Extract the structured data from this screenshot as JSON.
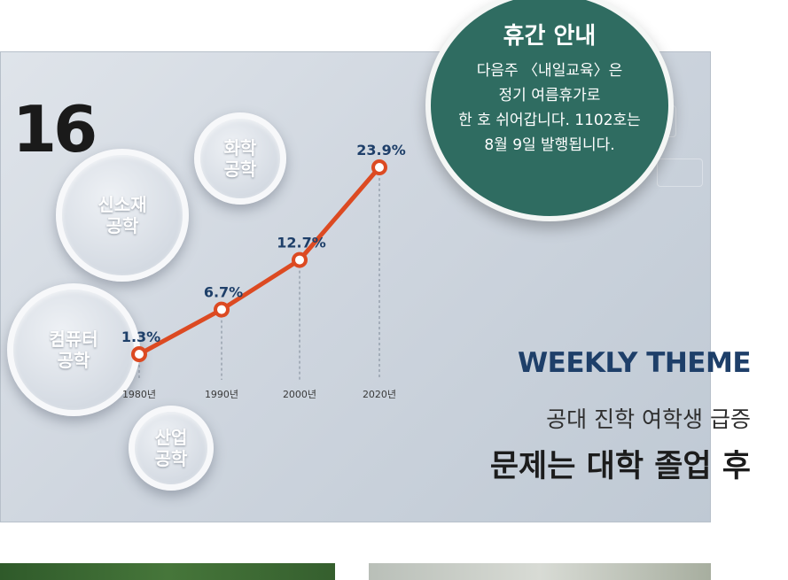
{
  "page_number": "16",
  "notice": {
    "title": "휴간 안내",
    "body": "다음주 〈내일교육〉은\n정기 여름휴가로\n한 호 쉬어갑니다. 1102호는\n8월 9일 발행됩니다."
  },
  "bubbles": [
    {
      "label": "화학\n공학"
    },
    {
      "label": "신소재\n공학"
    },
    {
      "label": "컴퓨터\n공학"
    },
    {
      "label": "산업\n공학"
    }
  ],
  "theme_label": "WEEKLY THEME",
  "subtitle": "공대 진학 여학생 급증",
  "headline": "문제는 대학 졸업 후",
  "chart_data": {
    "type": "line",
    "categories": [
      "1980년",
      "1990년",
      "2000년",
      "2020년"
    ],
    "values": [
      1.3,
      6.7,
      12.7,
      23.9
    ],
    "data_labels": [
      "1.3%",
      "6.7%",
      "12.7%",
      "23.9%"
    ],
    "ylim": [
      0,
      25
    ],
    "line_color": "#dc4a22",
    "label_color": "#1e3f69"
  },
  "colors": {
    "notice_bg": "#2f6c61",
    "theme_text": "#1e3f69"
  }
}
